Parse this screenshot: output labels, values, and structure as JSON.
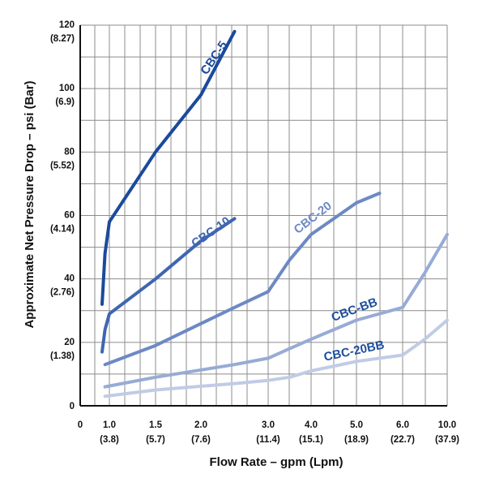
{
  "chart_data": {
    "type": "line",
    "xlabel": "Flow Rate – gpm (Lpm)",
    "ylabel": "Approximate Net Pressure Drop – psi (Bar)",
    "x_ticks": [
      {
        "value": 0,
        "label": "0",
        "sub": ""
      },
      {
        "value": 1.0,
        "label": "1.0",
        "sub": "(3.8)"
      },
      {
        "value": 1.5,
        "label": "1.5",
        "sub": "(5.7)"
      },
      {
        "value": 2.0,
        "label": "2.0",
        "sub": "(7.6)"
      },
      {
        "value": 3.0,
        "label": "3.0",
        "sub": "(11.4)"
      },
      {
        "value": 4.0,
        "label": "4.0",
        "sub": "(15.1)"
      },
      {
        "value": 5.0,
        "label": "5.0",
        "sub": "(18.9)"
      },
      {
        "value": 6.0,
        "label": "6.0",
        "sub": "(22.7)"
      },
      {
        "value": 10.0,
        "label": "10.0",
        "sub": "(37.9)"
      }
    ],
    "y_ticks": [
      {
        "value": 0,
        "label": "0",
        "sub": ""
      },
      {
        "value": 20,
        "label": "20",
        "sub": "(1.38)"
      },
      {
        "value": 40,
        "label": "40",
        "sub": "(2.76)"
      },
      {
        "value": 60,
        "label": "60",
        "sub": "(4.14)"
      },
      {
        "value": 80,
        "label": "80",
        "sub": "(5.52)"
      },
      {
        "value": 100,
        "label": "100",
        "sub": "(6.9)"
      },
      {
        "value": 120,
        "label": "120",
        "sub": "(8.27)"
      }
    ],
    "ylim": [
      0,
      120
    ],
    "grid": true,
    "series": [
      {
        "name": "CBC-5",
        "color": "#1a4a9c",
        "points": [
          [
            0.75,
            32
          ],
          [
            0.85,
            48
          ],
          [
            1.0,
            58
          ],
          [
            1.5,
            80
          ],
          [
            2.0,
            98
          ],
          [
            2.5,
            118
          ]
        ]
      },
      {
        "name": "CBC-10",
        "color": "#3f66b0",
        "points": [
          [
            0.75,
            17
          ],
          [
            0.85,
            24
          ],
          [
            1.0,
            29
          ],
          [
            1.5,
            40
          ],
          [
            2.0,
            52
          ],
          [
            2.5,
            59
          ]
        ]
      },
      {
        "name": "CBC-20",
        "color": "#6d89c4",
        "points": [
          [
            0.85,
            13
          ],
          [
            1.5,
            19
          ],
          [
            2.5,
            31
          ],
          [
            3.0,
            36
          ],
          [
            3.5,
            46
          ],
          [
            4.0,
            54
          ],
          [
            5.0,
            64
          ],
          [
            5.5,
            67
          ]
        ]
      },
      {
        "name": "CBC-BB",
        "color": "#97abd5",
        "points": [
          [
            0.85,
            6
          ],
          [
            1.5,
            9
          ],
          [
            2.5,
            13
          ],
          [
            3.0,
            15
          ],
          [
            3.5,
            18
          ],
          [
            4.0,
            21
          ],
          [
            5.0,
            27
          ],
          [
            6.0,
            31
          ],
          [
            8.0,
            42
          ],
          [
            10.0,
            54
          ]
        ]
      },
      {
        "name": "CBC-20BB",
        "color": "#c0cce6",
        "points": [
          [
            0.85,
            3
          ],
          [
            1.5,
            5
          ],
          [
            2.5,
            7
          ],
          [
            3.0,
            8
          ],
          [
            3.5,
            9
          ],
          [
            4.0,
            11
          ],
          [
            5.0,
            14
          ],
          [
            6.0,
            16
          ],
          [
            8.0,
            21
          ],
          [
            10.0,
            27
          ]
        ]
      }
    ],
    "series_labels": [
      "CBC-5",
      "CBC-10",
      "CBC-20",
      "CBC-BB",
      "CBC-20BB"
    ]
  }
}
